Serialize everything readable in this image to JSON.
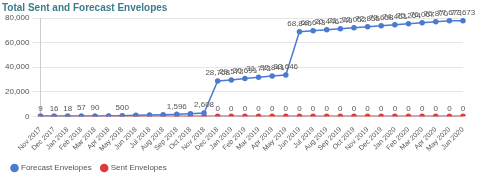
{
  "chart_data": {
    "type": "line",
    "title": "Total Sent and Forecast Envelopes",
    "categories": [
      "Nov 2017",
      "Dec 2017",
      "Jan 2018",
      "Feb 2018",
      "Mar 2018",
      "Apr 2018",
      "May 2018",
      "Jun 2018",
      "Jul 2018",
      "Aug 2018",
      "Sep 2018",
      "Oct 2018",
      "Nov 2018",
      "Dec 2018",
      "Jan 2019",
      "Feb 2019",
      "Mar 2019",
      "Apr 2019",
      "May 2019",
      "Jun 2019",
      "Jul 2019",
      "Aug 2019",
      "Sep 2019",
      "Oct 2019",
      "Nov 2019",
      "Dec 2019",
      "Jan 2020",
      "Feb 2020",
      "Mar 2020",
      "Apr 2020",
      "May 2020",
      "Jun 2020"
    ],
    "series": [
      {
        "name": "Forecast Envelopes",
        "color": "#4a7bd0",
        "marker": "circle",
        "values": [
          9,
          16,
          18,
          57,
          90,
          300,
          500,
          800,
          1100,
          1350,
          1596,
          2100,
          2608,
          28768,
          29572,
          30691,
          31773,
          32841,
          33646,
          68840,
          69643,
          70446,
          71249,
          72052,
          72855,
          73658,
          74461,
          75264,
          76067,
          76870,
          77673,
          77673
        ],
        "value_labels": [
          "9",
          "16",
          "18",
          "57",
          "90",
          null,
          "500",
          null,
          null,
          null,
          "1,596",
          null,
          "2,608",
          "28,768",
          "29,572",
          "30,691",
          "31,773",
          "32,841",
          "33,646",
          "68,840",
          "69,643",
          "70,446",
          "71,249",
          "72,052",
          "72,855",
          "73,658",
          "74,461",
          "75,264",
          "76,067",
          "76,870",
          "77,673",
          "77,673"
        ]
      },
      {
        "name": "Sent Envelopes",
        "color": "#e0393e",
        "marker": "circle",
        "values": [
          0,
          0,
          0,
          0,
          0,
          0,
          0,
          0,
          0,
          0,
          0,
          0,
          0,
          0,
          0,
          0,
          0,
          0,
          0,
          0,
          0,
          0,
          0,
          0,
          0,
          0,
          0,
          0,
          0,
          0,
          0,
          0
        ],
        "value_labels": [
          null,
          null,
          null,
          null,
          null,
          null,
          null,
          null,
          null,
          null,
          null,
          null,
          null,
          "0",
          "0",
          "0",
          "0",
          "0",
          "0",
          "0",
          "0",
          "0",
          "0",
          "0",
          "0",
          "0",
          "0",
          "0",
          "0",
          "0",
          "0",
          "0"
        ]
      }
    ],
    "ylim": [
      0,
      80000
    ],
    "yticks": [
      0,
      {
        "value": 20000,
        "label": "20,000"
      },
      {
        "value": 40000,
        "label": "40,000"
      },
      {
        "value": 60000,
        "label": "60,000"
      },
      {
        "value": 80000,
        "label": "80,000"
      }
    ],
    "grid": true,
    "legend": "bottom-left",
    "data_labels": true
  }
}
